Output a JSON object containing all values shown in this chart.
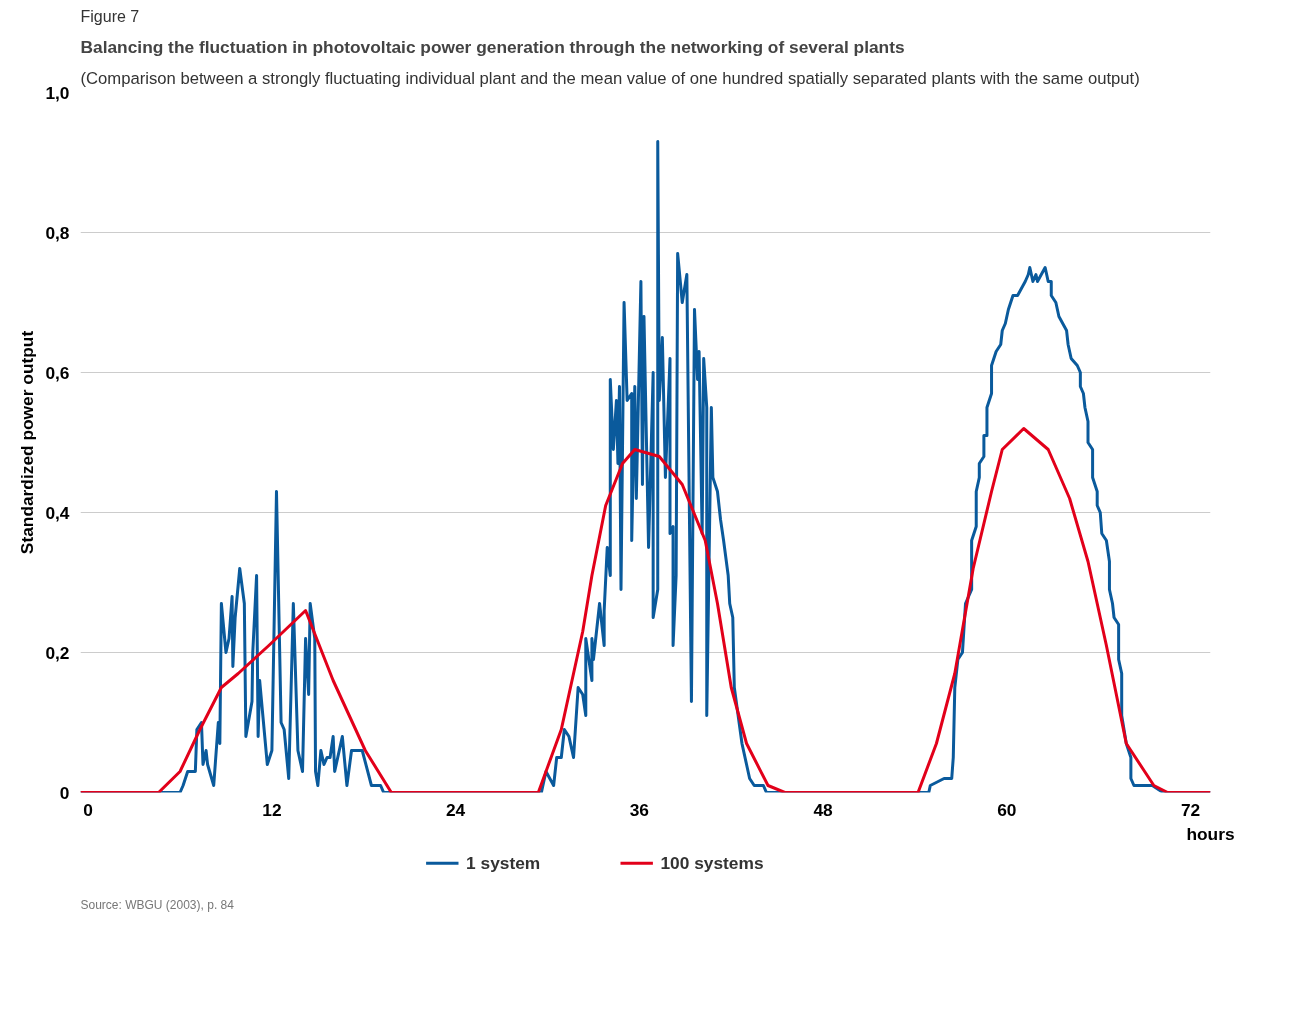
{
  "chart_data": {
    "type": "line",
    "title": "Balancing the fluctuation in photovoltaic power generation through the networking of several plants",
    "subtitle": "(Comparison between a strongly fluctuating individual plant and the mean value of one hundred spatially separated plants with the same output)",
    "xlabel": "hours",
    "ylabel": "Standardized power output",
    "annotations": [
      "Figure 7",
      "Source: WBGU (2003), p. 84"
    ],
    "xlim": [
      -0.5,
      73.3
    ],
    "ylim": [
      0,
      1.0
    ],
    "xticks": [
      0,
      12,
      24,
      36,
      48,
      60,
      72
    ],
    "yticks": [
      {
        "value": 0,
        "label": "0"
      },
      {
        "value": 0.2,
        "label": "0,2"
      },
      {
        "value": 0.4,
        "label": "0,4"
      },
      {
        "value": 0.6,
        "label": "0,6"
      },
      {
        "value": 0.8,
        "label": "0,8"
      },
      {
        "value": 1.0,
        "label": "1,0"
      }
    ],
    "grid": "y",
    "legend": "bottom",
    "line_style": "solid",
    "series": [
      {
        "name": "1 system",
        "color": "#0a5a9c",
        "x": [
          -0.5,
          6.0,
          6.2,
          6.5,
          7.0,
          7.1,
          7.4,
          7.5,
          7.7,
          7.8,
          8.2,
          8.5,
          8.6,
          8.7,
          9.0,
          9.2,
          9.4,
          9.45,
          9.6,
          9.9,
          10.2,
          10.3,
          10.7,
          10.75,
          11.0,
          11.1,
          11.2,
          11.7,
          12.0,
          12.3,
          12.6,
          12.8,
          13.1,
          13.4,
          13.7,
          14.0,
          14.2,
          14.4,
          14.5,
          14.8,
          14.85,
          15.0,
          15.2,
          15.4,
          15.6,
          15.8,
          16.0,
          16.1,
          16.6,
          16.9,
          17.2,
          17.9,
          18.5,
          19.1,
          19.3,
          29.4,
          29.6,
          29.9,
          30.4,
          30.6,
          30.9,
          31.1,
          31.4,
          31.7,
          32.0,
          32.3,
          32.5,
          32.5,
          32.9,
          32.9,
          33.0,
          33.4,
          33.7,
          33.7,
          33.9,
          34.1,
          34.1,
          34.3,
          34.5,
          34.6,
          34.7,
          34.8,
          35.0,
          35.2,
          35.5,
          35.5,
          35.7,
          35.8,
          36.1,
          36.2,
          36.3,
          36.6,
          36.9,
          36.9,
          37.2,
          37.2,
          37.3,
          37.5,
          37.7,
          38.0,
          38.0,
          38.2,
          38.2,
          38.4,
          38.5,
          38.8,
          39.1,
          39.4,
          39.6,
          39.8,
          39.9,
          40.1,
          40.2,
          40.4,
          40.4,
          40.7,
          40.8,
          41.1,
          41.3,
          41.5,
          41.8,
          41.9,
          42.1,
          42.2,
          42.7,
          43.0,
          43.2,
          43.5,
          44.1,
          44.3,
          54.9,
          55.0,
          55.9,
          56.4,
          56.5,
          56.6,
          56.8,
          57.1,
          57.3,
          57.7,
          57.7,
          58.0,
          58.0,
          58.2,
          58.2,
          58.5,
          58.5,
          58.7,
          58.7,
          59.0,
          59.0,
          59.3,
          59.6,
          59.7,
          59.9,
          60.1,
          60.4,
          60.7,
          61.2,
          61.4,
          61.5,
          61.7,
          61.9,
          62.0,
          62.5,
          62.7,
          62.9,
          62.9,
          63.2,
          63.4,
          63.9,
          64.0,
          64.2,
          64.6,
          64.8,
          64.8,
          65.0,
          65.1,
          65.3,
          65.3,
          65.6,
          65.6,
          65.9,
          65.9,
          66.1,
          66.2,
          66.5,
          66.7,
          66.7,
          66.9,
          67.0,
          67.3,
          67.3,
          67.5,
          67.5,
          67.8,
          68.1,
          68.1,
          68.3,
          69.5,
          70.2,
          73.3
        ],
        "values": [
          0,
          0,
          0.01,
          0.03,
          0.03,
          0.09,
          0.1,
          0.04,
          0.06,
          0.04,
          0.01,
          0.1,
          0.07,
          0.27,
          0.2,
          0.22,
          0.28,
          0.18,
          0.25,
          0.32,
          0.27,
          0.08,
          0.13,
          0.2,
          0.31,
          0.08,
          0.16,
          0.04,
          0.06,
          0.43,
          0.1,
          0.09,
          0.02,
          0.27,
          0.06,
          0.03,
          0.22,
          0.14,
          0.27,
          0.22,
          0.03,
          0.01,
          0.06,
          0.04,
          0.05,
          0.05,
          0.08,
          0.03,
          0.08,
          0.01,
          0.06,
          0.06,
          0.01,
          0.01,
          0,
          0,
          0,
          0.03,
          0.01,
          0.05,
          0.05,
          0.09,
          0.08,
          0.05,
          0.15,
          0.14,
          0.11,
          0.22,
          0.16,
          0.22,
          0.19,
          0.27,
          0.21,
          0.26,
          0.35,
          0.31,
          0.59,
          0.49,
          0.56,
          0.47,
          0.58,
          0.29,
          0.7,
          0.56,
          0.57,
          0.36,
          0.58,
          0.42,
          0.73,
          0.44,
          0.68,
          0.35,
          0.6,
          0.25,
          0.29,
          0.93,
          0.56,
          0.65,
          0.45,
          0.62,
          0.37,
          0.38,
          0.21,
          0.31,
          0.77,
          0.7,
          0.74,
          0.13,
          0.69,
          0.59,
          0.63,
          0.37,
          0.62,
          0.55,
          0.11,
          0.55,
          0.45,
          0.43,
          0.39,
          0.36,
          0.31,
          0.27,
          0.25,
          0.15,
          0.07,
          0.04,
          0.02,
          0.01,
          0.01,
          0,
          0,
          0.01,
          0.02,
          0.02,
          0.05,
          0.15,
          0.19,
          0.2,
          0.27,
          0.29,
          0.36,
          0.38,
          0.43,
          0.45,
          0.47,
          0.48,
          0.51,
          0.51,
          0.55,
          0.57,
          0.61,
          0.63,
          0.64,
          0.66,
          0.67,
          0.69,
          0.71,
          0.71,
          0.73,
          0.74,
          0.75,
          0.73,
          0.74,
          0.73,
          0.75,
          0.73,
          0.73,
          0.71,
          0.7,
          0.68,
          0.66,
          0.64,
          0.62,
          0.61,
          0.6,
          0.58,
          0.57,
          0.55,
          0.53,
          0.5,
          0.49,
          0.45,
          0.43,
          0.41,
          0.4,
          0.37,
          0.36,
          0.33,
          0.29,
          0.27,
          0.25,
          0.24,
          0.19,
          0.17,
          0.11,
          0.07,
          0.05,
          0.02,
          0.01,
          0.01,
          0,
          0
        ]
      },
      {
        "name": "100 systems",
        "color": "#e2001a",
        "x": [
          -0.5,
          4.6,
          6.0,
          7.3,
          8.7,
          9.8,
          11.8,
          14.2,
          16.0,
          18.1,
          19.8,
          29.4,
          30.9,
          32.3,
          32.9,
          33.8,
          34.9,
          35.7,
          37.3,
          38.8,
          40.3,
          41.1,
          42.0,
          43.0,
          44.4,
          45.5,
          54.2,
          55.4,
          56.6,
          57.8,
          59.0,
          59.7,
          61.1,
          62.7,
          64.1,
          65.3,
          66.5,
          67.8,
          69.0,
          69.6,
          70.5,
          73.3
        ],
        "values": [
          0,
          0,
          0.03,
          0.09,
          0.15,
          0.17,
          0.21,
          0.26,
          0.16,
          0.06,
          0,
          0,
          0.09,
          0.23,
          0.31,
          0.41,
          0.47,
          0.49,
          0.48,
          0.44,
          0.36,
          0.27,
          0.15,
          0.07,
          0.01,
          0,
          0,
          0.07,
          0.17,
          0.32,
          0.43,
          0.49,
          0.52,
          0.49,
          0.42,
          0.33,
          0.21,
          0.07,
          0.03,
          0.01,
          0,
          0
        ]
      }
    ]
  }
}
